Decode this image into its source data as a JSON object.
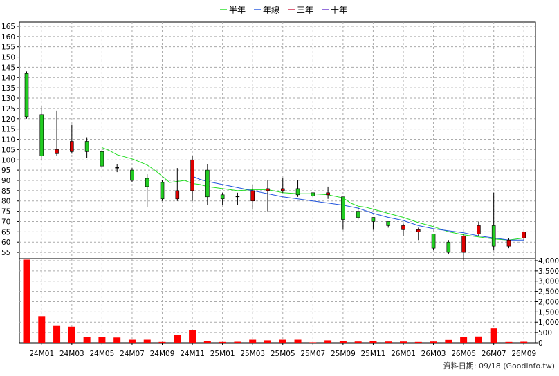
{
  "chart_data": {
    "type": "candlestick",
    "title": "",
    "legend": {
      "placement": "top-center",
      "items": [
        {
          "name": "半年",
          "color": "#22dd22"
        },
        {
          "name": "年線",
          "color": "#2255dd"
        },
        {
          "name": "三年",
          "color": "#cc2244"
        },
        {
          "name": "十年",
          "color": "#6633cc"
        }
      ]
    },
    "price_axis": {
      "ylim": [
        52,
        167
      ],
      "ticks": [
        55,
        60,
        65,
        70,
        75,
        80,
        85,
        90,
        95,
        100,
        105,
        110,
        115,
        120,
        125,
        130,
        135,
        140,
        145,
        150,
        155,
        160,
        165
      ],
      "grid": true
    },
    "volume_axis": {
      "ylim": [
        0,
        4100
      ],
      "ticks": [
        0,
        500,
        1000,
        1500,
        2000,
        2500,
        3000,
        3500,
        4000
      ],
      "tick_labels": [
        "0",
        "500",
        "1,000",
        "1,500",
        "2,000",
        "2,500",
        "3,000",
        "3,500",
        "4,000"
      ]
    },
    "x_ticks": [
      {
        "label": "24M01",
        "i": 1
      },
      {
        "label": "24M03",
        "i": 3
      },
      {
        "label": "24M05",
        "i": 5
      },
      {
        "label": "24M07",
        "i": 7
      },
      {
        "label": "24M09",
        "i": 9
      },
      {
        "label": "24M11",
        "i": 11
      },
      {
        "label": "25M01",
        "i": 13
      },
      {
        "label": "25M03",
        "i": 15
      },
      {
        "label": "25M05",
        "i": 17
      },
      {
        "label": "25M07",
        "i": 19
      },
      {
        "label": "25M09",
        "i": 21
      },
      {
        "label": "25M11",
        "i": 23
      },
      {
        "label": "26M01",
        "i": 25
      },
      {
        "label": "26M03",
        "i": 27
      },
      {
        "label": "26M05",
        "i": 29
      },
      {
        "label": "26M07",
        "i": 31
      },
      {
        "label": "26M09",
        "i": 33
      }
    ],
    "candles": [
      {
        "o": 142,
        "h": 143,
        "l": 120,
        "c": 121
      },
      {
        "o": 122,
        "h": 126,
        "l": 100,
        "c": 102
      },
      {
        "o": 103,
        "h": 124,
        "l": 102,
        "c": 105
      },
      {
        "o": 104,
        "h": 117,
        "l": 103,
        "c": 109
      },
      {
        "o": 109,
        "h": 111,
        "l": 101,
        "c": 104
      },
      {
        "o": 104,
        "h": 105,
        "l": 96,
        "c": 97
      },
      {
        "o": 96.5,
        "h": 98,
        "l": 94,
        "c": 96
      },
      {
        "o": 95,
        "h": 96,
        "l": 89,
        "c": 90
      },
      {
        "o": 91,
        "h": 93,
        "l": 77,
        "c": 87
      },
      {
        "o": 89,
        "h": 90,
        "l": 80,
        "c": 81
      },
      {
        "o": 81,
        "h": 96,
        "l": 80,
        "c": 85
      },
      {
        "o": 85,
        "h": 102,
        "l": 80,
        "c": 100
      },
      {
        "o": 95,
        "h": 98,
        "l": 78,
        "c": 82
      },
      {
        "o": 83,
        "h": 84,
        "l": 78,
        "c": 81
      },
      {
        "o": 82.5,
        "h": 84,
        "l": 78,
        "c": 82
      },
      {
        "o": 80,
        "h": 88,
        "l": 76,
        "c": 85
      },
      {
        "o": 85,
        "h": 90,
        "l": 75,
        "c": 86
      },
      {
        "o": 85,
        "h": 91,
        "l": 84,
        "c": 86
      },
      {
        "o": 86,
        "h": 90,
        "l": 82,
        "c": 83
      },
      {
        "o": 84,
        "h": 84,
        "l": 82,
        "c": 82.5
      },
      {
        "o": 83,
        "h": 87,
        "l": 81,
        "c": 84
      },
      {
        "o": 82,
        "h": 82,
        "l": 66,
        "c": 71
      },
      {
        "o": 75,
        "h": 77,
        "l": 71,
        "c": 72
      },
      {
        "o": 72,
        "h": 72,
        "l": 66,
        "c": 70
      },
      {
        "o": 70,
        "h": 70,
        "l": 67,
        "c": 68
      },
      {
        "o": 66,
        "h": 69,
        "l": 63,
        "c": 68
      },
      {
        "o": 65,
        "h": 67,
        "l": 61,
        "c": 66
      },
      {
        "o": 64,
        "h": 64,
        "l": 56,
        "c": 57
      },
      {
        "o": 60,
        "h": 61,
        "l": 54,
        "c": 55
      },
      {
        "o": 55,
        "h": 64,
        "l": 51,
        "c": 63
      },
      {
        "o": 64,
        "h": 70,
        "l": 63,
        "c": 68
      },
      {
        "o": 68,
        "h": 84,
        "l": 56,
        "c": 58
      },
      {
        "o": 58,
        "h": 62,
        "l": 57,
        "c": 61
      },
      {
        "o": 62,
        "h": 65,
        "l": 61,
        "c": 65
      }
    ],
    "volume": [
      4050,
      1300,
      850,
      780,
      300,
      280,
      260,
      150,
      150,
      40,
      400,
      620,
      80,
      40,
      50,
      150,
      120,
      150,
      150,
      20,
      120,
      100,
      60,
      80,
      60,
      60,
      40,
      60,
      140,
      300,
      310,
      700,
      40,
      50
    ],
    "ma_half_year": [
      [
        5,
        106
      ],
      [
        5.5,
        104.5
      ],
      [
        6,
        102.5
      ],
      [
        6.5,
        101.5
      ],
      [
        7,
        100.5
      ],
      [
        7.5,
        99
      ],
      [
        8,
        97.5
      ],
      [
        8.5,
        95
      ],
      [
        9,
        92
      ],
      [
        9.5,
        89
      ],
      [
        10,
        89.5
      ],
      [
        10.5,
        90
      ],
      [
        11,
        88.5
      ],
      [
        11.5,
        88
      ],
      [
        12,
        87
      ],
      [
        13,
        86
      ],
      [
        14,
        85
      ],
      [
        15,
        85.5
      ],
      [
        16,
        85.5
      ],
      [
        17,
        84
      ],
      [
        18,
        83.5
      ],
      [
        19,
        83.5
      ],
      [
        20,
        83
      ],
      [
        21,
        81.5
      ],
      [
        21.5,
        79
      ],
      [
        22,
        77.5
      ],
      [
        22.5,
        77
      ],
      [
        23,
        76
      ],
      [
        24,
        74
      ],
      [
        25,
        72
      ],
      [
        26,
        69.5
      ],
      [
        27,
        67.5
      ],
      [
        28,
        65
      ],
      [
        29,
        63.5
      ],
      [
        30,
        62.5
      ],
      [
        31,
        61.5
      ],
      [
        32,
        61
      ],
      [
        33,
        62
      ]
    ],
    "ma_year": [
      [
        11,
        92
      ],
      [
        11.5,
        90.5
      ],
      [
        12,
        89.5
      ],
      [
        13,
        88
      ],
      [
        14,
        86.5
      ],
      [
        15,
        85
      ],
      [
        16,
        83.5
      ],
      [
        17,
        82
      ],
      [
        18,
        81
      ],
      [
        19,
        80
      ],
      [
        20,
        79
      ],
      [
        21,
        78
      ],
      [
        22,
        76.5
      ],
      [
        23,
        74
      ],
      [
        24,
        72
      ],
      [
        25,
        70.5
      ],
      [
        26,
        68
      ],
      [
        27,
        66.5
      ],
      [
        28,
        65.5
      ],
      [
        29,
        64.5
      ],
      [
        30,
        63
      ],
      [
        31,
        62
      ],
      [
        32,
        61
      ],
      [
        33,
        61
      ]
    ],
    "footer": "資料日期: 09/18  (Goodinfo.tw)"
  }
}
